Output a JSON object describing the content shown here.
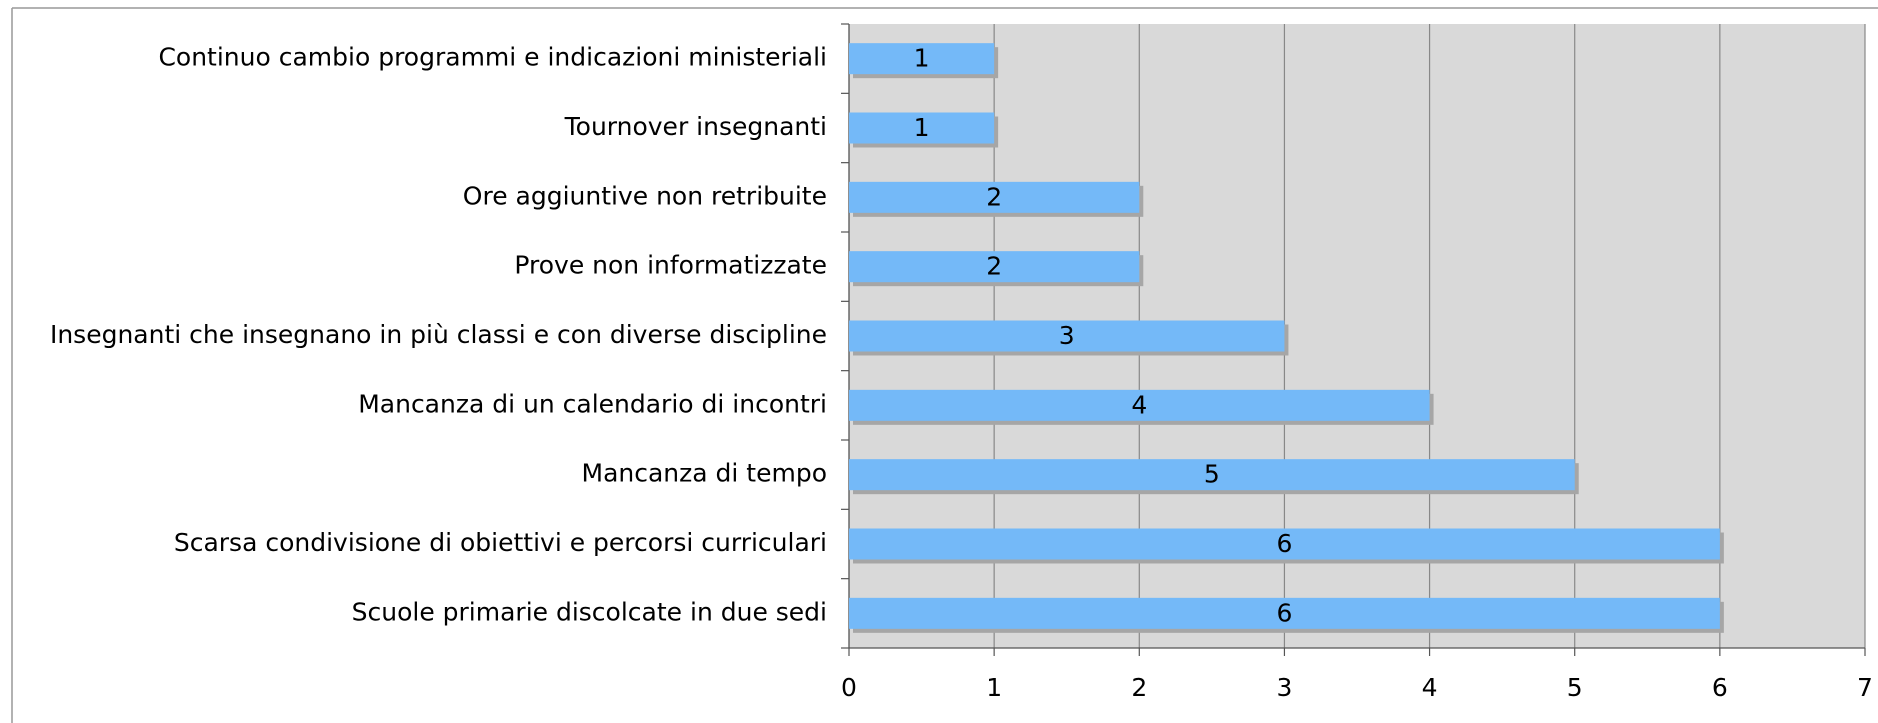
{
  "chart_data": {
    "type": "bar",
    "orientation": "horizontal",
    "categories": [
      "Continuo cambio programmi e indicazioni ministeriali",
      "Tournover insegnanti",
      "Ore aggiuntive non retribuite",
      "Prove non informatizzate",
      "Insegnanti che insegnano in più classi e con diverse discipline",
      "Mancanza di un calendario di incontri",
      "Mancanza di tempo",
      "Scarsa condivisione di obiettivi e percorsi curriculari",
      "Scuole primarie discolcate in due sedi"
    ],
    "values": [
      1,
      1,
      2,
      2,
      3,
      4,
      5,
      6,
      6
    ],
    "color": "#74b9f8",
    "xlim": [
      0,
      7
    ],
    "xticks": [
      0,
      1,
      2,
      3,
      4,
      5,
      6,
      7
    ],
    "grid": true
  }
}
